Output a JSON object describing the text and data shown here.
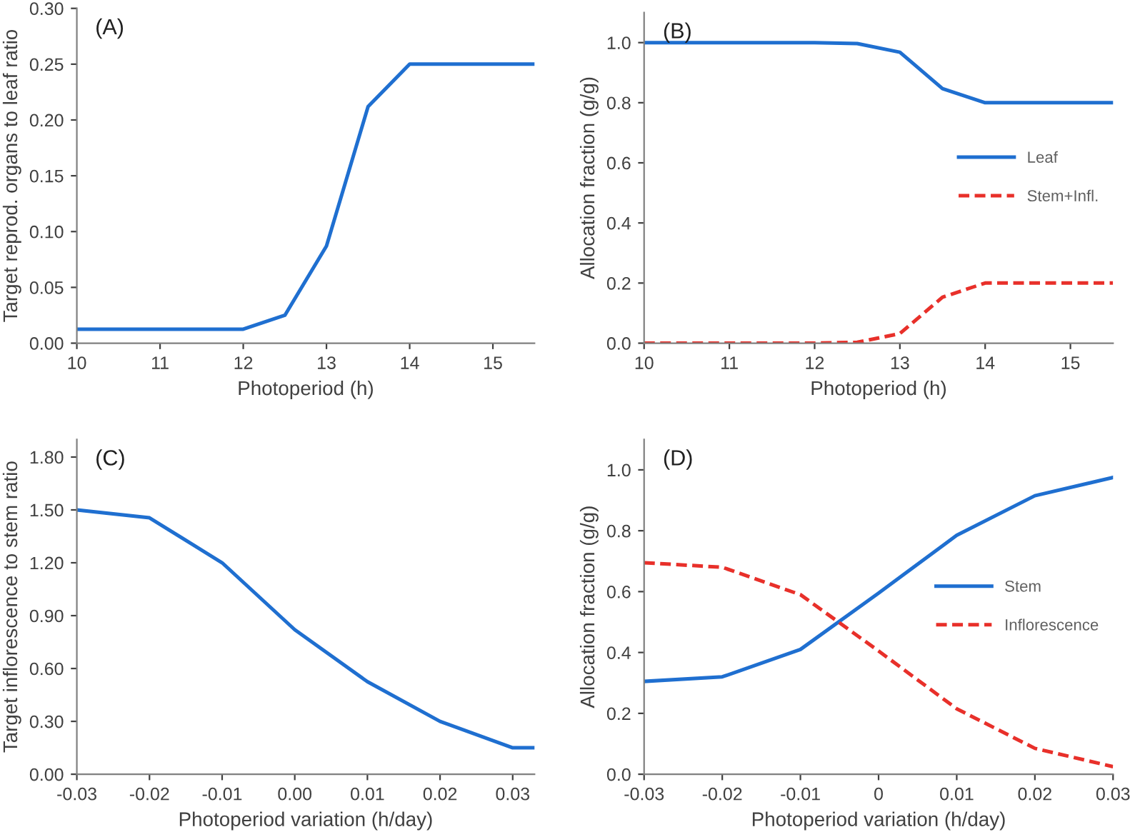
{
  "chart_data": [
    {
      "type": "line",
      "xlabel": "Photoperiod (h)",
      "ylabel": "Target reprod. organs to leaf ratio",
      "annotations": [
        "(A)"
      ],
      "x": [
        10,
        12,
        12.5,
        13,
        13.5,
        14,
        15.5
      ],
      "series": [
        {
          "color": "#1f6fd0",
          "line_style": "solid",
          "values": [
            0.0125,
            0.0125,
            0.025,
            0.087,
            0.212,
            0.25,
            0.25
          ]
        }
      ],
      "xlim": [
        10,
        15.5
      ],
      "xticks": [
        10,
        11,
        12,
        13,
        14,
        15
      ],
      "ylim": [
        0,
        0.3
      ],
      "yticks": [
        {
          "value": 0,
          "label": "0.00"
        },
        {
          "value": 0.05,
          "label": "0.05"
        },
        {
          "value": 0.1,
          "label": "0.10"
        },
        {
          "value": 0.15,
          "label": "0.15"
        },
        {
          "value": 0.2,
          "label": "0.20"
        },
        {
          "value": 0.25,
          "label": "0.25"
        },
        {
          "value": 0.3,
          "label": "0.30"
        }
      ],
      "grid": false,
      "marker": "none"
    },
    {
      "type": "line",
      "xlabel": "Photoperiod (h)",
      "ylabel": "Allocation fraction (g/g)",
      "annotations": [
        "(B)"
      ],
      "x": [
        10,
        12,
        12.5,
        13,
        13.5,
        14,
        15.5
      ],
      "series": [
        {
          "name": "Leaf",
          "color": "#1f6fd0",
          "line_style": "solid",
          "values": [
            1.0,
            1.0,
            0.997,
            0.968,
            0.847,
            0.8,
            0.8
          ]
        },
        {
          "name": "Stem+Infl.",
          "color": "#e8302a",
          "line_style": "dashed",
          "values": [
            0,
            0,
            0.003,
            0.032,
            0.153,
            0.2,
            0.2
          ]
        }
      ],
      "xlim": [
        10,
        15.5
      ],
      "xticks": [
        10,
        11,
        12,
        13,
        14,
        15
      ],
      "ylim": [
        0,
        1.1
      ],
      "yticks": [
        {
          "value": 0,
          "label": "0.0"
        },
        {
          "value": 0.2,
          "label": "0.2"
        },
        {
          "value": 0.4,
          "label": "0.4"
        },
        {
          "value": 0.6,
          "label": "0.6"
        },
        {
          "value": 0.8,
          "label": "0.8"
        },
        {
          "value": 1.0,
          "label": "1.0"
        }
      ],
      "grid": false,
      "legend": "right",
      "marker": "none"
    },
    {
      "type": "line",
      "xlabel": "Photoperiod variation (h/day)",
      "ylabel": "Target inflorescence to stem ratio",
      "annotations": [
        "(C)"
      ],
      "x": [
        -0.03,
        -0.02,
        -0.01,
        0,
        0.01,
        0.02,
        0.03,
        0.033
      ],
      "series": [
        {
          "color": "#1f6fd0",
          "line_style": "solid",
          "values": [
            1.5,
            1.455,
            1.2,
            0.82,
            0.525,
            0.3,
            0.15,
            0.15
          ]
        }
      ],
      "xlim": [
        -0.03,
        0.033
      ],
      "xticks": [
        {
          "value": -0.03,
          "label": "-0.03"
        },
        {
          "value": -0.02,
          "label": "-0.02"
        },
        {
          "value": -0.01,
          "label": "-0.01"
        },
        {
          "value": 0,
          "label": "0.00"
        },
        {
          "value": 0.01,
          "label": "0.01"
        },
        {
          "value": 0.02,
          "label": "0.02"
        },
        {
          "value": 0.03,
          "label": "0.03"
        }
      ],
      "ylim": [
        0,
        1.9
      ],
      "yticks": [
        {
          "value": 0,
          "label": "0.00"
        },
        {
          "value": 0.3,
          "label": "0.30"
        },
        {
          "value": 0.6,
          "label": "0.60"
        },
        {
          "value": 0.9,
          "label": "0.90"
        },
        {
          "value": 1.2,
          "label": "1.20"
        },
        {
          "value": 1.5,
          "label": "1.50"
        },
        {
          "value": 1.8,
          "label": "1.80"
        }
      ],
      "grid": false,
      "marker": "none"
    },
    {
      "type": "line",
      "xlabel": "Photoperiod variation (h/day)",
      "ylabel": "Allocation fraction (g/g)",
      "annotations": [
        "(D)"
      ],
      "x": [
        -0.03,
        -0.02,
        -0.01,
        0,
        0.01,
        0.02,
        0.03
      ],
      "series": [
        {
          "name": "Stem",
          "color": "#1f6fd0",
          "line_style": "solid",
          "values": [
            0.305,
            0.32,
            0.41,
            0.595,
            0.785,
            0.915,
            0.975
          ]
        },
        {
          "name": "Inflorescence",
          "color": "#e8302a",
          "line_style": "dashed",
          "values": [
            0.695,
            0.68,
            0.59,
            0.405,
            0.215,
            0.085,
            0.025
          ]
        }
      ],
      "xlim": [
        -0.03,
        0.03
      ],
      "xticks": [
        {
          "value": -0.03,
          "label": "-0.03"
        },
        {
          "value": -0.02,
          "label": "-0.02"
        },
        {
          "value": -0.01,
          "label": "-0.01"
        },
        {
          "value": 0,
          "label": "0"
        },
        {
          "value": 0.01,
          "label": "0.01"
        },
        {
          "value": 0.02,
          "label": "0.02"
        },
        {
          "value": 0.03,
          "label": "0.03"
        }
      ],
      "ylim": [
        0,
        1.1
      ],
      "yticks": [
        {
          "value": 0,
          "label": "0.0"
        },
        {
          "value": 0.2,
          "label": "0.2"
        },
        {
          "value": 0.4,
          "label": "0.4"
        },
        {
          "value": 0.6,
          "label": "0.6"
        },
        {
          "value": 0.8,
          "label": "0.8"
        },
        {
          "value": 1.0,
          "label": "1.0"
        }
      ],
      "grid": false,
      "legend": "right",
      "marker": "none"
    }
  ]
}
